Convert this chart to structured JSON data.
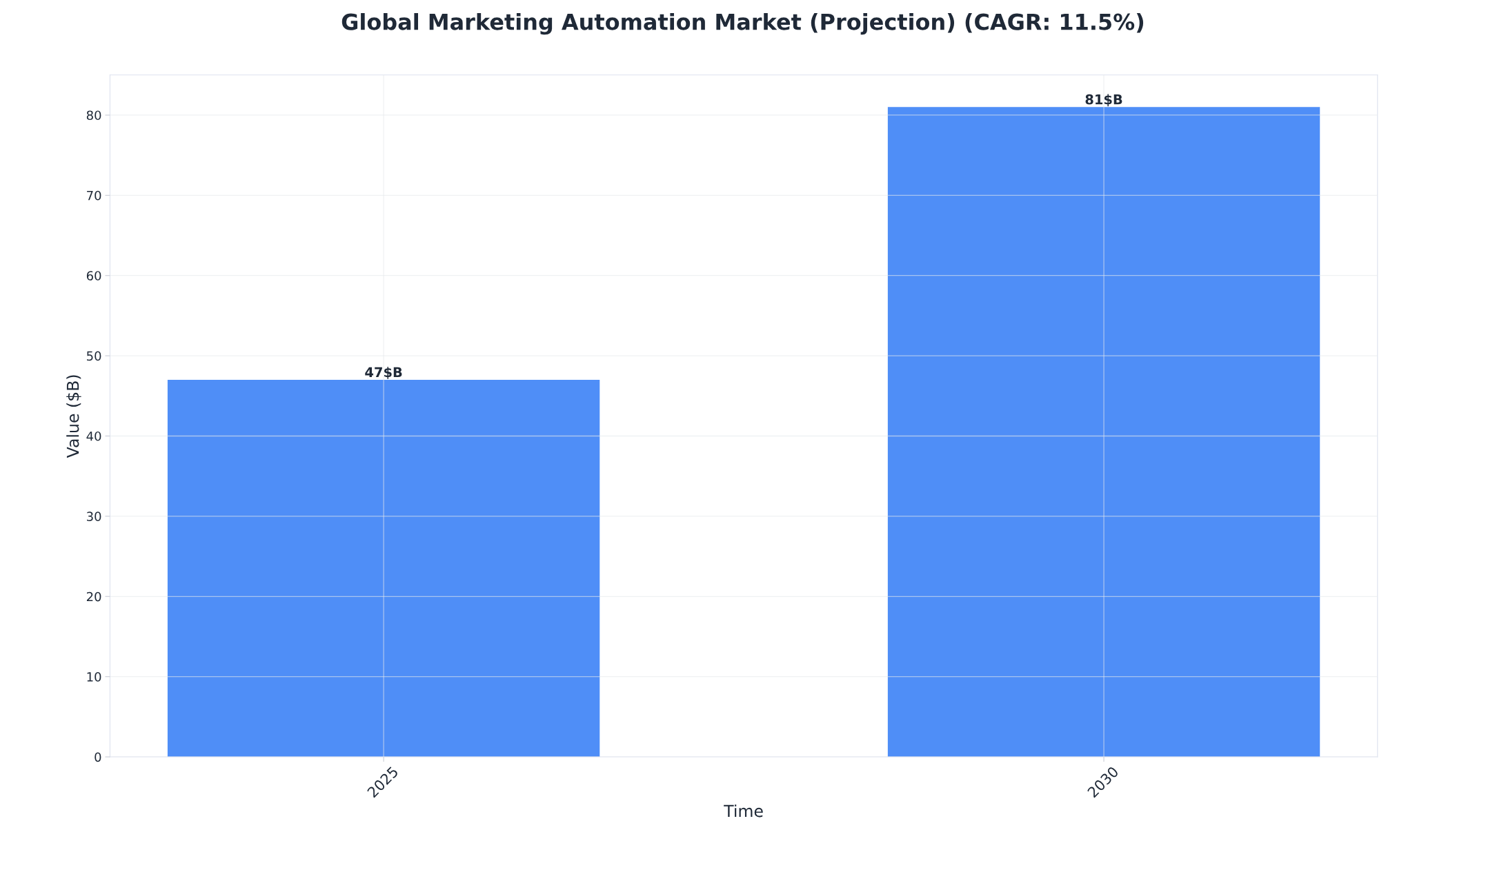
{
  "chart_data": {
    "type": "bar",
    "title": "Global Marketing Automation Market (Projection) (CAGR: 11.5%)",
    "xlabel": "Time",
    "ylabel": "Value ($B)",
    "categories": [
      "2025",
      "2030"
    ],
    "series": [
      {
        "color": "#4f8ef7",
        "values": [
          47,
          81
        ],
        "value_labels": [
          "47$B",
          "81$B"
        ]
      }
    ],
    "ylim": [
      0,
      85
    ],
    "yticks": [
      0,
      10,
      20,
      30,
      40,
      50,
      60,
      70,
      80
    ],
    "grid": true
  }
}
